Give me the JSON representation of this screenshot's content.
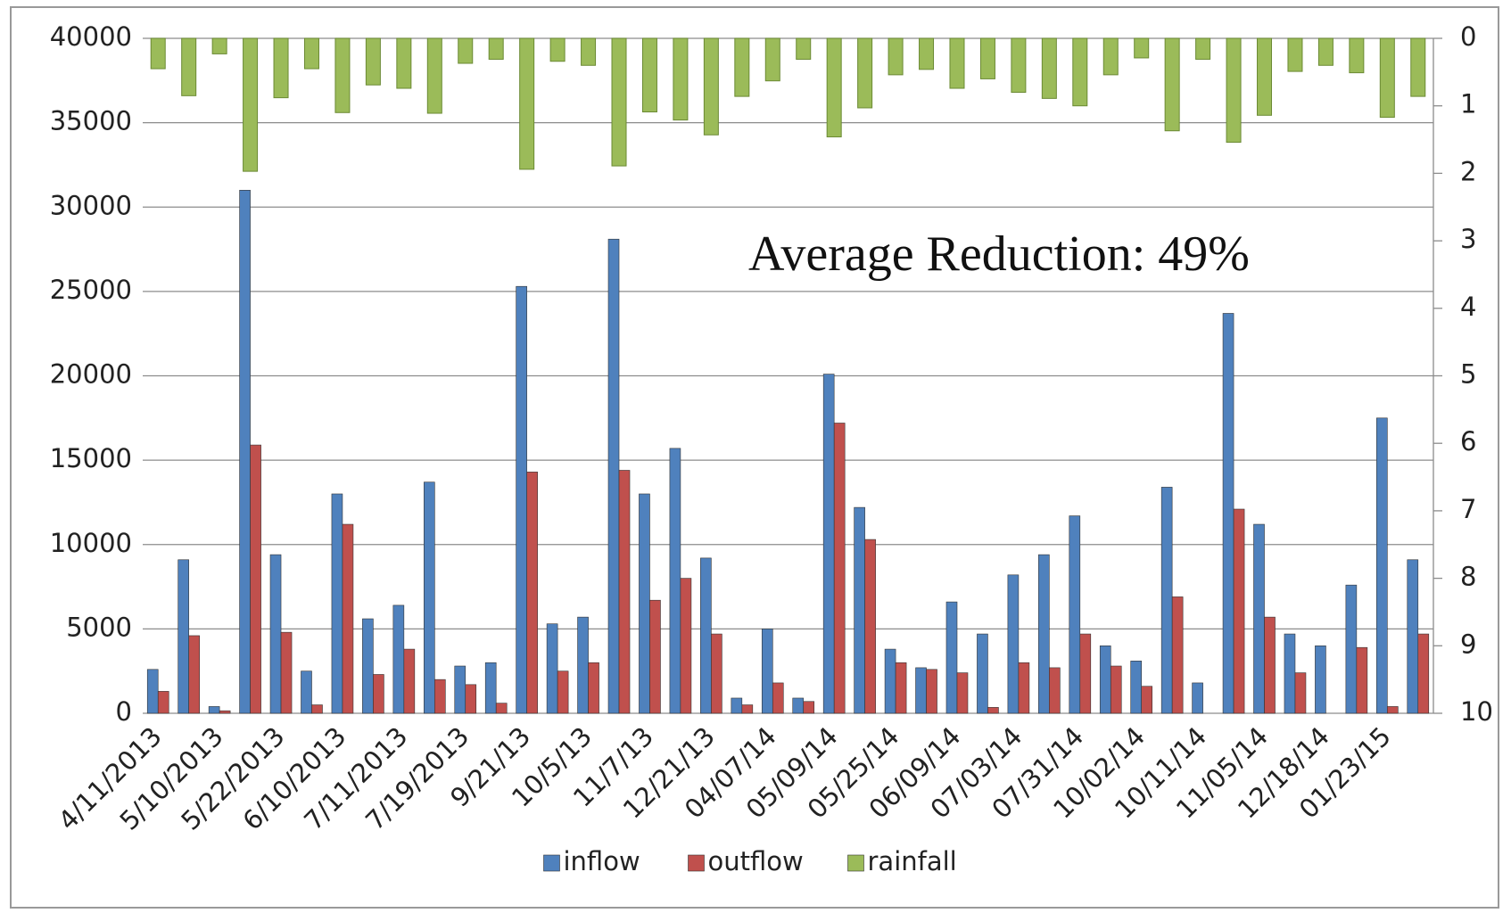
{
  "chart_data": {
    "type": "bar",
    "annotation": "Average Reduction: 49%",
    "categories": [
      "4/11/2013",
      null,
      "5/10/2013",
      null,
      "5/22/2013",
      null,
      "6/10/2013",
      null,
      "7/11/2013",
      null,
      "7/19/2013",
      null,
      "9/21/13",
      null,
      "10/5/13",
      null,
      "11/7/13",
      null,
      "12/21/13",
      null,
      "04/07/14",
      null,
      "05/09/14",
      null,
      "05/25/14",
      null,
      "06/09/14",
      null,
      "07/03/14",
      null,
      "07/31/14",
      null,
      "10/02/14",
      null,
      "10/11/14",
      null,
      "11/05/14",
      null,
      "12/18/14",
      null,
      "01/23/15",
      null
    ],
    "series": [
      {
        "name": "inflow",
        "color": "#4f81bd",
        "values": [
          2600,
          9100,
          400,
          31000,
          9400,
          2500,
          13000,
          5600,
          6400,
          13700,
          2800,
          3000,
          25300,
          5300,
          5700,
          28100,
          13000,
          15700,
          9200,
          900,
          5000,
          900,
          20100,
          12200,
          3800,
          2700,
          6600,
          4700,
          8200,
          9400,
          11700,
          4000,
          3100,
          13400,
          1800,
          23700,
          11200,
          4700,
          4000,
          7600,
          17500,
          9100
        ]
      },
      {
        "name": "outflow",
        "color": "#c0504d",
        "values": [
          1300,
          4600,
          150,
          15900,
          4800,
          500,
          11200,
          2300,
          3800,
          2000,
          1700,
          600,
          14300,
          2500,
          3000,
          14400,
          6700,
          8000,
          4700,
          500,
          1800,
          700,
          17200,
          10300,
          3000,
          2600,
          2400,
          350,
          3000,
          2700,
          4700,
          2800,
          1600,
          6900,
          null,
          12100,
          5700,
          2400,
          null,
          3900,
          400,
          4700
        ]
      },
      {
        "name": "rainfall",
        "color": "#9bbb59",
        "axis": "y2",
        "values": [
          0.45,
          0.85,
          0.23,
          1.97,
          0.88,
          0.45,
          1.1,
          0.69,
          0.74,
          1.11,
          0.37,
          0.31,
          1.94,
          0.34,
          0.4,
          1.89,
          1.09,
          1.21,
          1.43,
          0.86,
          0.63,
          0.31,
          1.46,
          1.03,
          0.54,
          0.46,
          0.74,
          0.6,
          0.8,
          0.89,
          1.0,
          0.54,
          0.29,
          1.37,
          0.31,
          1.54,
          1.14,
          0.49,
          0.4,
          0.51,
          1.17,
          0.86
        ]
      }
    ],
    "ylim": [
      0,
      40000
    ],
    "yticks": [
      0,
      5000,
      10000,
      15000,
      20000,
      25000,
      30000,
      35000,
      40000
    ],
    "y2lim": [
      0,
      10
    ],
    "y2ticks": [
      0,
      1,
      2,
      3,
      4,
      5,
      6,
      7,
      8,
      9,
      10
    ],
    "y2_inverted": true,
    "grid": true,
    "legend": "bottom"
  }
}
